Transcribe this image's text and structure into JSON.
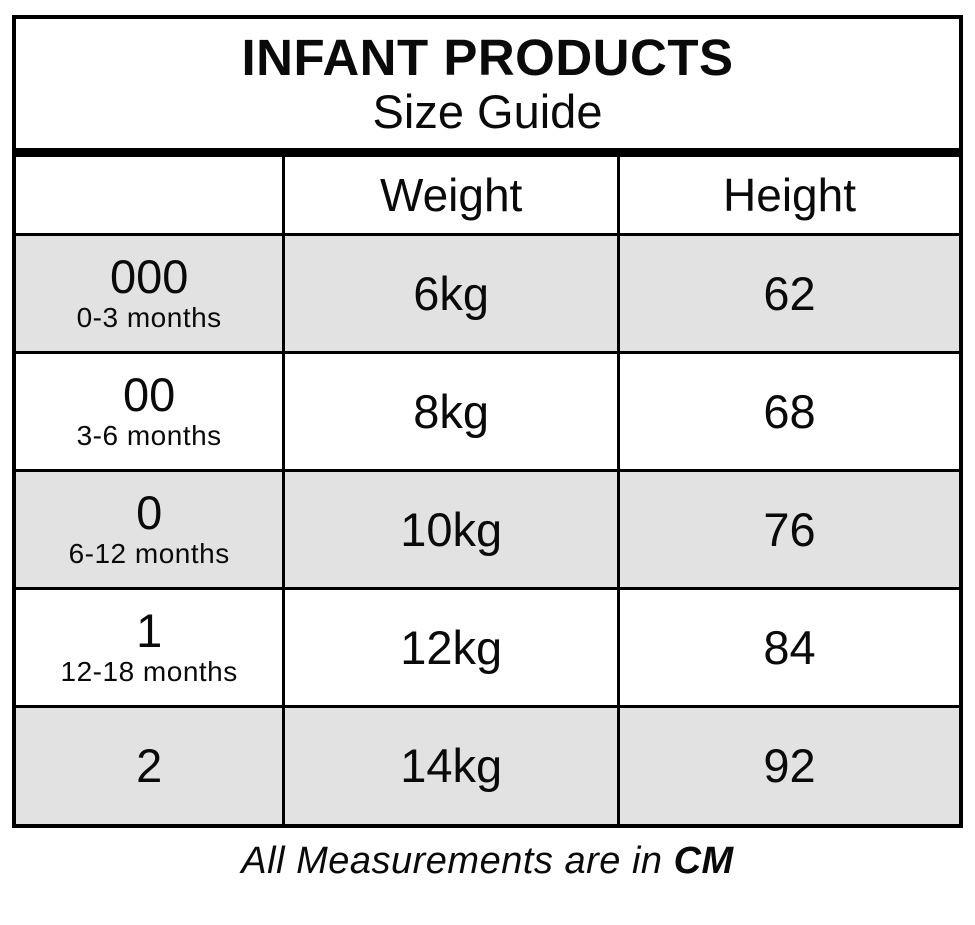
{
  "colors": {
    "border": "#000000",
    "row_shade": "#e2e2e2",
    "background": "#ffffff"
  },
  "title": {
    "line1": "INFANT PRODUCTS",
    "line2": "Size Guide"
  },
  "table": {
    "columns": [
      "",
      "Weight",
      "Height"
    ],
    "rows": [
      {
        "size": "000",
        "age": "0-3 months",
        "weight": "6kg",
        "height": "62",
        "shaded": true
      },
      {
        "size": "00",
        "age": "3-6 months",
        "weight": "8kg",
        "height": "68",
        "shaded": false
      },
      {
        "size": "0",
        "age": "6-12 months",
        "weight": "10kg",
        "height": "76",
        "shaded": true
      },
      {
        "size": "1",
        "age": "12-18 months",
        "weight": "12kg",
        "height": "84",
        "shaded": false
      },
      {
        "size": "2",
        "age": "",
        "weight": "14kg",
        "height": "92",
        "shaded": true
      }
    ]
  },
  "footer": {
    "prefix": "All Measurements are in ",
    "unit": "CM"
  }
}
